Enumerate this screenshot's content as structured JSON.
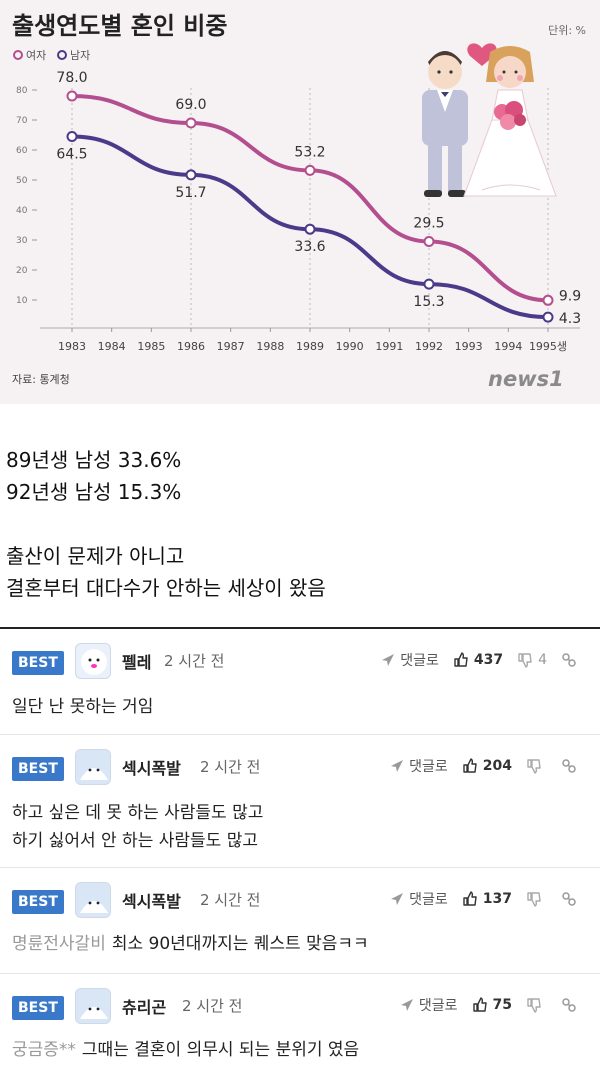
{
  "infographic": {
    "title": "출생연도별 혼인 비중",
    "unit": "단위: %",
    "legend": [
      {
        "name": "여자",
        "color": "#b44f8f"
      },
      {
        "name": "남자",
        "color": "#4b3a8a"
      }
    ],
    "source": "자료: 통계청",
    "logo": "news1"
  },
  "chart_data": {
    "type": "line",
    "title": "출생연도별 혼인 비중",
    "x": [
      "1983",
      "1984",
      "1985",
      "1986",
      "1987",
      "1988",
      "1989",
      "1990",
      "1991",
      "1992",
      "1993",
      "1994",
      "1995생"
    ],
    "y_ticks": [
      "80",
      "70",
      "60",
      "50",
      "40",
      "30",
      "20",
      "10"
    ],
    "ylim": [
      0,
      85
    ],
    "grid": "vertical dashed at labeled points",
    "legend_position": "top-left",
    "series": [
      {
        "name": "여자",
        "color": "#b44f8f",
        "points": [
          {
            "x": "1983",
            "y": 78.0
          },
          {
            "x": "1986",
            "y": 69.0
          },
          {
            "x": "1989",
            "y": 53.2
          },
          {
            "x": "1992",
            "y": 29.5
          },
          {
            "x": "1995생",
            "y": 9.9
          }
        ],
        "labels": [
          "78.0",
          "69.0",
          "53.2",
          "29.5",
          "9.9"
        ]
      },
      {
        "name": "남자",
        "color": "#4b3a8a",
        "points": [
          {
            "x": "1983",
            "y": 64.5
          },
          {
            "x": "1986",
            "y": 51.7
          },
          {
            "x": "1989",
            "y": 33.6
          },
          {
            "x": "1992",
            "y": 15.3
          },
          {
            "x": "1995생",
            "y": 4.3
          }
        ],
        "labels": [
          "64.5",
          "51.7",
          "33.6",
          "15.3",
          "4.3"
        ]
      }
    ]
  },
  "post": {
    "lines": [
      "89년생 남성 33.6%",
      "92년생 남성 15.3%",
      "",
      "출산이 문제가 아니고",
      "결혼부터 대다수가 안하는 세상이 왔음"
    ]
  },
  "comments": [
    {
      "badge": "BEST",
      "nick": "펠레",
      "time": "2 시간 전",
      "reply": "댓글로",
      "likes": "437",
      "dislikes": "4",
      "prefix": "",
      "lines": [
        "일단 난 못하는 거임"
      ]
    },
    {
      "badge": "BEST",
      "nick": "섹시폭발",
      "time": "2 시간 전",
      "reply": "댓글로",
      "likes": "204",
      "dislikes": "",
      "prefix": "",
      "lines": [
        "하고 싶은 데 못 하는 사람들도 많고",
        "하기 싫어서 안 하는 사람들도 많고"
      ]
    },
    {
      "badge": "BEST",
      "nick": "섹시폭발",
      "time": "2 시간 전",
      "reply": "댓글로",
      "likes": "137",
      "dislikes": "",
      "prefix": "명륜전사갈비",
      "lines": [
        "최소 90년대까지는 퀘스트 맞음ㅋㅋ"
      ]
    },
    {
      "badge": "BEST",
      "nick": "츄리곤",
      "time": "2 시간 전",
      "reply": "댓글로",
      "likes": "75",
      "dislikes": "",
      "prefix": "궁금증**",
      "lines": [
        "그때는 결혼이 의무시 되는 분위기 였음"
      ]
    }
  ]
}
